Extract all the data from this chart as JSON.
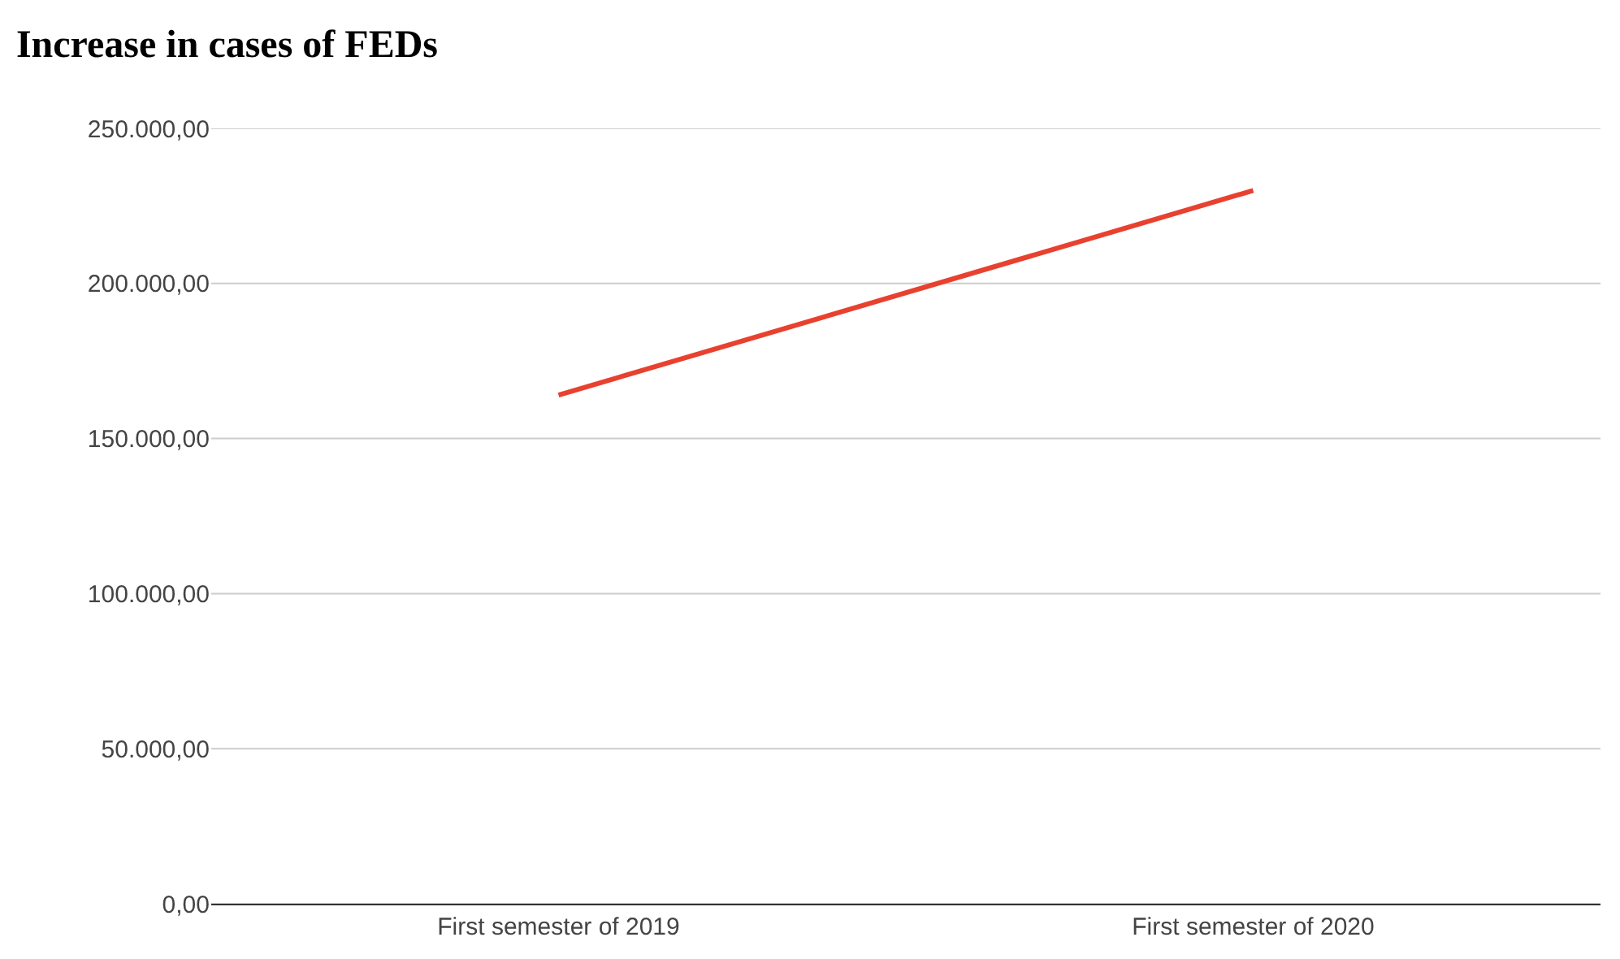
{
  "chart_data": {
    "type": "line",
    "title": "Increase in cases of FEDs",
    "categories": [
      "First semester of 2019",
      "First semester of 2020"
    ],
    "series": [
      {
        "color": "#e8412f",
        "values": [
          164000,
          230000
        ]
      }
    ],
    "ylim": [
      0,
      250000
    ],
    "yticks": [
      {
        "value": 0,
        "label": "0,00"
      },
      {
        "value": 50000,
        "label": "50.000,00"
      },
      {
        "value": 100000,
        "label": "100.000,00"
      },
      {
        "value": 150000,
        "label": "150.000,00"
      },
      {
        "value": 200000,
        "label": "200.000,00"
      },
      {
        "value": 250000,
        "label": "250.000,00"
      }
    ],
    "grid": "y",
    "marker": "none",
    "line_style": "solid"
  }
}
